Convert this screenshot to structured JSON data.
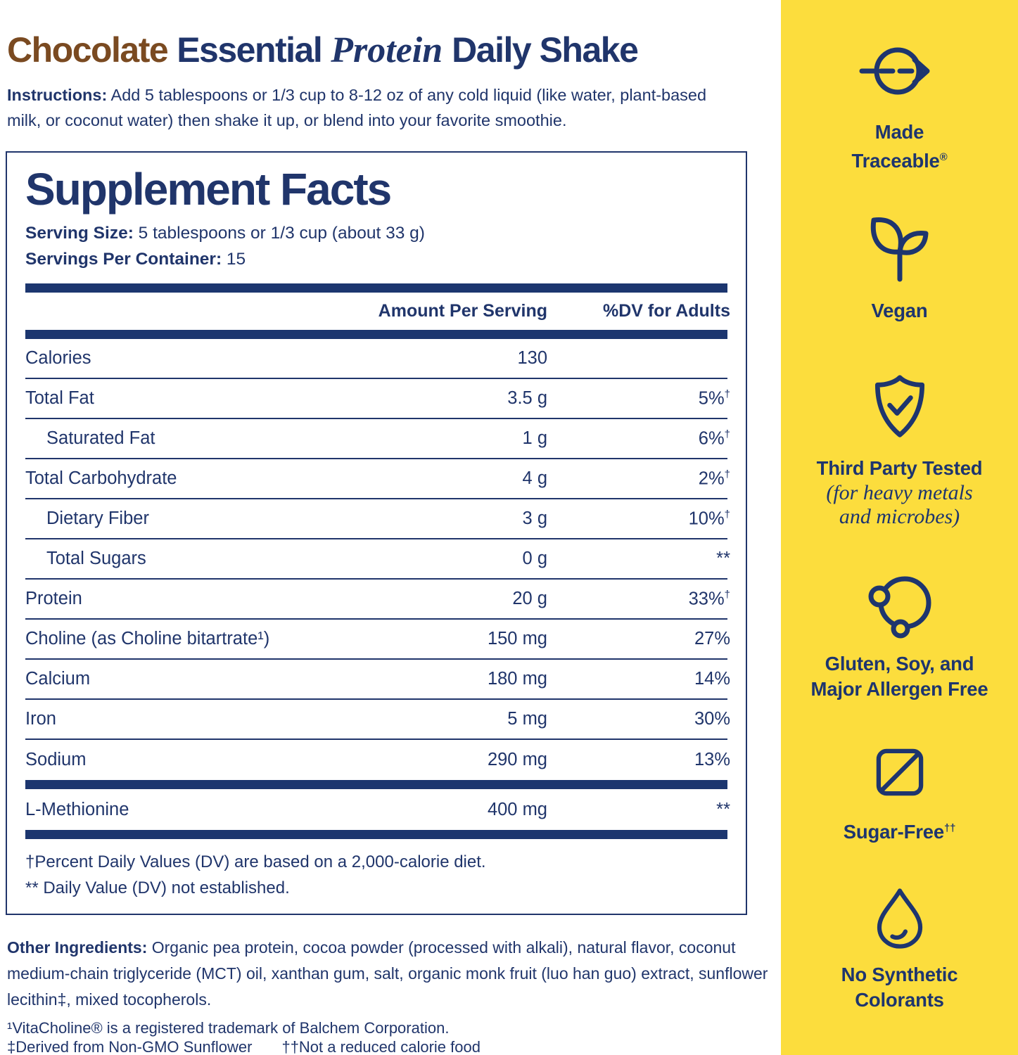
{
  "title": {
    "flavor": "Chocolate",
    "part2": "Essential",
    "part3": "Protein",
    "part4": "Daily Shake"
  },
  "instructions": {
    "label": "Instructions:",
    "text": "Add 5 tablespoons or 1/3 cup to 8-12 oz of any cold liquid (like water, plant-based milk, or coconut water) then shake it up, or blend into your favorite smoothie."
  },
  "supplement_facts": {
    "heading": "Supplement Facts",
    "serving_size_label": "Serving Size:",
    "serving_size": "5 tablespoons or 1/3 cup (about 33 g)",
    "servings_label": "Servings Per Container:",
    "servings": "15",
    "col_amount": "Amount Per Serving",
    "col_dv": "%DV for Adults",
    "rows": [
      {
        "label": "Calories",
        "amount": "130",
        "dv": "",
        "dv_sup": "",
        "indent": false
      },
      {
        "label": "Total Fat",
        "amount": "3.5 g",
        "dv": "5%",
        "dv_sup": "†",
        "indent": false
      },
      {
        "label": "Saturated Fat",
        "amount": "1 g",
        "dv": "6%",
        "dv_sup": "†",
        "indent": true
      },
      {
        "label": "Total Carbohydrate",
        "amount": "4 g",
        "dv": "2%",
        "dv_sup": "†",
        "indent": false
      },
      {
        "label": "Dietary Fiber",
        "amount": "3 g",
        "dv": "10%",
        "dv_sup": "†",
        "indent": true
      },
      {
        "label": "Total Sugars",
        "amount": "0 g",
        "dv": "**",
        "dv_sup": "",
        "indent": true
      },
      {
        "label": "Protein",
        "amount": "20 g",
        "dv": "33%",
        "dv_sup": "†",
        "indent": false
      },
      {
        "label": "Choline (as Choline bitartrate¹)",
        "amount": "150 mg",
        "dv": "27%",
        "dv_sup": "",
        "indent": false
      },
      {
        "label": "Calcium",
        "amount": "180 mg",
        "dv": "14%",
        "dv_sup": "",
        "indent": false
      },
      {
        "label": "Iron",
        "amount": "5 mg",
        "dv": "30%",
        "dv_sup": "",
        "indent": false
      },
      {
        "label": "Sodium",
        "amount": "290 mg",
        "dv": "13%",
        "dv_sup": "",
        "indent": false
      }
    ],
    "extra_rows": [
      {
        "label": "L-Methionine",
        "amount": "400 mg",
        "dv": "**",
        "dv_sup": "",
        "indent": false
      }
    ],
    "footnotes": [
      "†Percent Daily Values (DV) are based on a 2,000-calorie diet.",
      "** Daily Value (DV) not established."
    ]
  },
  "other_ingredients": {
    "label": "Other Ingredients:",
    "text": "Organic pea protein, cocoa powder (processed with alkali), natural flavor, coconut medium-chain triglyceride (MCT) oil, xanthan gum, salt, organic monk fruit (luo han guo) extract, sunflower lecithin‡, mixed tocopherols."
  },
  "trademark_notes": [
    "¹VitaCholine® is a registered trademark of Balchem Corporation.",
    "‡Derived from Non-GMO Sunflower",
    "††Not a reduced calorie food"
  ],
  "badges": [
    {
      "icon": "made-traceable-icon",
      "lines": [
        {
          "text": "Made"
        },
        {
          "text": "Traceable",
          "sup": "®"
        }
      ]
    },
    {
      "icon": "vegan-icon",
      "lines": [
        {
          "text": "Vegan"
        }
      ]
    },
    {
      "icon": "third-party-tested-icon",
      "lines": [
        {
          "text": "Third Party Tested"
        }
      ],
      "italic_lines": [
        "(for heavy metals",
        "and microbes)"
      ]
    },
    {
      "icon": "allergen-free-icon",
      "lines": [
        {
          "text": "Gluten, Soy, and"
        },
        {
          "text": "Major Allergen Free"
        }
      ]
    },
    {
      "icon": "sugar-free-icon",
      "lines": [
        {
          "text": "Sugar-Free",
          "sup": "††"
        }
      ]
    },
    {
      "icon": "no-synthetic-colorants-icon",
      "lines": [
        {
          "text": "No Synthetic"
        },
        {
          "text": "Colorants"
        }
      ]
    }
  ],
  "colors": {
    "accent_yellow": "#FCDD3D",
    "navy": "#1E356E",
    "brown": "#7A4A21"
  }
}
